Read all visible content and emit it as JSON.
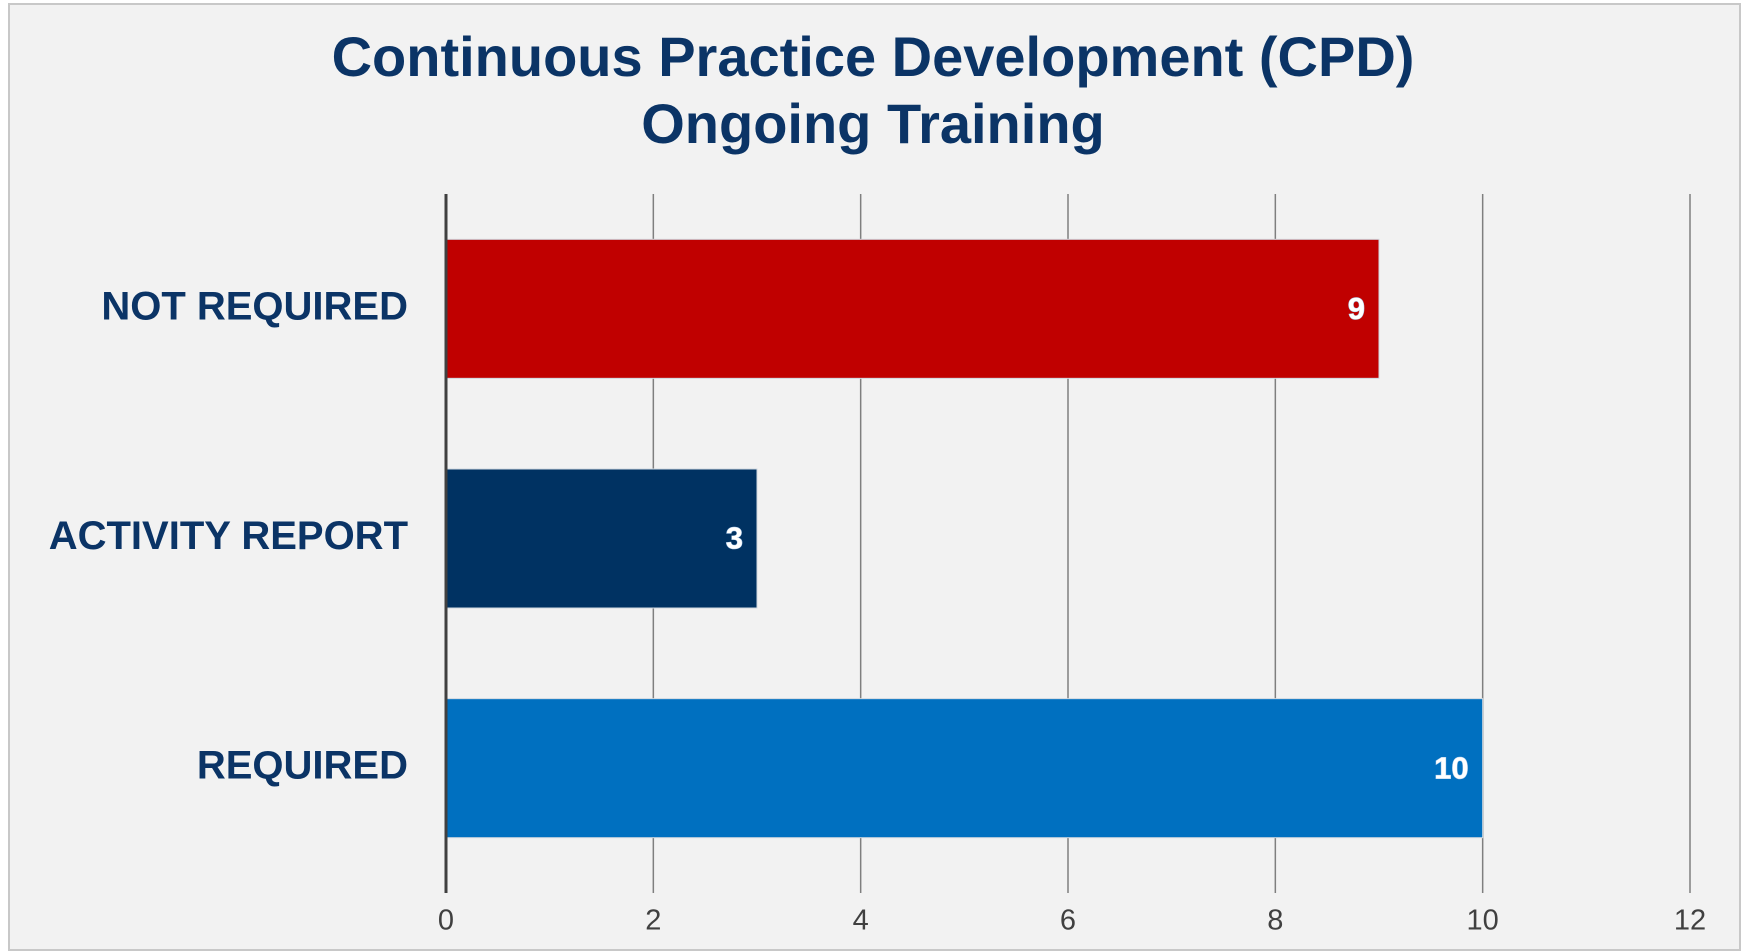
{
  "chart_data": {
    "type": "hbar",
    "title": [
      "Continuous Practice Development (CPD)",
      "Ongoing Training"
    ],
    "categories": [
      "NOT REQUIRED",
      "ACTIVITY REPORT",
      "REQUIRED"
    ],
    "values": [
      9,
      3,
      10
    ],
    "colors": [
      "#c00000",
      "#003262",
      "#0070c0"
    ],
    "xlim": [
      0,
      12
    ],
    "xticks": [
      0,
      2,
      4,
      6,
      8,
      10,
      12
    ],
    "grid": true
  }
}
